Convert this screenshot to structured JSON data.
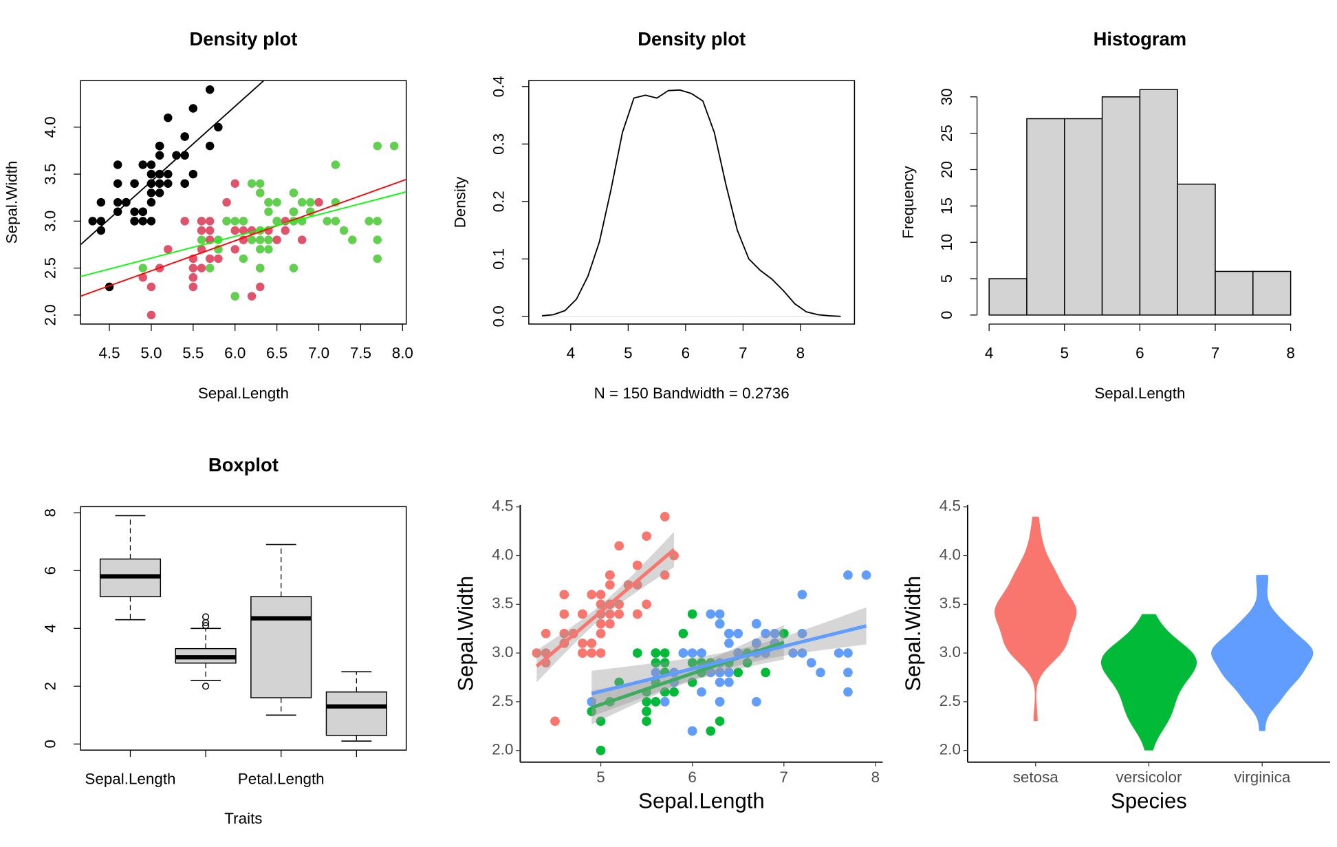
{
  "chart_data": [
    {
      "type": "scatter",
      "title": "Density plot",
      "x_label": "Sepal.Length",
      "y_label": "Sepal.Width",
      "xlim": [
        4.156,
        8.044
      ],
      "ylim": [
        1.904,
        4.496
      ],
      "xticks": [
        4.5,
        {
          "value": 5,
          "label": "5.0"
        },
        5.5,
        {
          "value": 6,
          "label": "6.0"
        },
        6.5,
        {
          "value": 7,
          "label": "7.0"
        },
        7.5,
        {
          "value": 8,
          "label": "8.0"
        }
      ],
      "yticks": [
        {
          "value": 2,
          "label": "2.0"
        },
        2.5,
        {
          "value": 3,
          "label": "3.0"
        },
        3.5,
        {
          "value": 4,
          "label": "4.0"
        }
      ],
      "trend_lines": true,
      "series": [
        {
          "color": "#000000",
          "line_color": "#000000",
          "x": [
            5.1,
            4.9,
            4.7,
            4.6,
            5.0,
            5.4,
            4.6,
            5.0,
            4.4,
            4.9,
            5.4,
            4.8,
            4.8,
            4.3,
            5.8,
            5.7,
            5.4,
            5.1,
            5.7,
            5.1,
            5.4,
            5.1,
            4.6,
            5.1,
            4.8,
            5.0,
            5.0,
            5.2,
            5.2,
            4.7,
            4.8,
            5.4,
            5.2,
            5.5,
            4.9,
            5.0,
            5.5,
            4.9,
            4.4,
            5.1,
            5.0,
            4.5,
            4.4,
            5.0,
            5.1,
            4.8,
            5.1,
            4.6,
            5.3,
            5.0
          ],
          "y": [
            3.5,
            3.0,
            3.2,
            3.1,
            3.6,
            3.9,
            3.4,
            3.4,
            2.9,
            3.1,
            3.7,
            3.4,
            3.0,
            3.0,
            4.0,
            4.4,
            3.9,
            3.5,
            3.8,
            3.8,
            3.4,
            3.7,
            3.6,
            3.3,
            3.4,
            3.0,
            3.4,
            3.5,
            3.4,
            3.2,
            3.1,
            3.4,
            4.1,
            4.2,
            3.1,
            3.2,
            3.5,
            3.6,
            3.0,
            3.4,
            3.5,
            2.3,
            3.2,
            3.5,
            3.8,
            3.0,
            3.8,
            3.2,
            3.7,
            3.3
          ]
        },
        {
          "color": "#DF536B",
          "line_color": "#FF0000",
          "x": [
            7.0,
            6.4,
            6.9,
            5.5,
            6.5,
            5.7,
            6.3,
            4.9,
            6.6,
            5.2,
            5.0,
            5.9,
            6.0,
            6.1,
            5.6,
            6.7,
            5.6,
            5.8,
            6.2,
            5.6,
            5.9,
            6.1,
            6.3,
            6.1,
            6.4,
            6.6,
            6.8,
            6.7,
            6.0,
            5.7,
            5.5,
            5.5,
            5.8,
            6.0,
            5.4,
            6.0,
            6.7,
            6.3,
            5.6,
            5.5,
            5.5,
            6.1,
            5.8,
            5.0,
            5.6,
            5.7,
            5.7,
            6.2,
            5.1,
            5.7
          ],
          "y": [
            3.2,
            3.2,
            3.1,
            2.3,
            2.8,
            2.8,
            3.3,
            2.4,
            2.9,
            2.7,
            2.0,
            3.0,
            2.2,
            2.9,
            2.9,
            3.1,
            3.0,
            2.7,
            2.2,
            2.5,
            3.2,
            2.8,
            2.5,
            2.8,
            2.9,
            3.0,
            2.8,
            3.0,
            2.9,
            2.6,
            2.4,
            2.4,
            2.7,
            2.7,
            3.0,
            3.4,
            3.1,
            2.3,
            3.0,
            2.5,
            2.6,
            3.0,
            2.6,
            2.3,
            2.7,
            3.0,
            2.9,
            2.9,
            2.5,
            2.8
          ]
        },
        {
          "color": "#61D04F",
          "line_color": "#00FF00",
          "x": [
            6.3,
            5.8,
            7.1,
            6.3,
            6.5,
            7.6,
            4.9,
            7.3,
            6.7,
            7.2,
            6.5,
            6.4,
            6.8,
            5.7,
            5.8,
            6.4,
            6.5,
            7.7,
            7.7,
            6.0,
            6.9,
            5.6,
            7.7,
            6.3,
            6.7,
            7.2,
            6.2,
            6.1,
            6.4,
            7.2,
            7.4,
            7.9,
            6.4,
            6.3,
            6.1,
            7.7,
            6.3,
            6.4,
            6.0,
            6.9,
            6.7,
            6.9,
            5.8,
            6.8,
            6.7,
            6.7,
            6.3,
            6.5,
            6.2,
            5.9
          ],
          "y": [
            3.3,
            2.7,
            3.0,
            2.9,
            3.0,
            3.0,
            2.5,
            2.9,
            2.5,
            3.6,
            3.2,
            2.7,
            3.0,
            2.5,
            2.8,
            3.2,
            3.0,
            3.8,
            2.6,
            2.2,
            3.2,
            2.8,
            2.8,
            2.7,
            3.3,
            3.2,
            2.8,
            3.0,
            2.8,
            3.0,
            2.8,
            3.8,
            2.8,
            2.8,
            2.6,
            3.0,
            3.4,
            3.1,
            3.0,
            3.1,
            3.1,
            3.1,
            2.7,
            3.2,
            3.3,
            3.0,
            2.5,
            3.0,
            3.4,
            3.0
          ]
        }
      ]
    },
    {
      "type": "density",
      "title": "Density plot",
      "x_label": "N = 150   Bandwidth = 0.2736",
      "y_label": "Density",
      "xlim": [
        3.27,
        8.94
      ],
      "ylim": [
        -0.0134,
        0.4104
      ],
      "xticks": [
        4,
        5,
        6,
        7,
        8
      ],
      "yticks": [
        {
          "value": 0,
          "label": "0.0"
        },
        0.1,
        0.2,
        0.3,
        0.4
      ],
      "color": "#000000",
      "x": [
        3.5,
        3.7,
        3.9,
        4.1,
        4.3,
        4.5,
        4.7,
        4.9,
        5.1,
        5.3,
        5.5,
        5.7,
        5.9,
        6.1,
        6.3,
        6.5,
        6.7,
        6.9,
        7.1,
        7.3,
        7.5,
        7.7,
        7.9,
        8.1,
        8.3,
        8.5,
        8.7
      ],
      "values": [
        0.001,
        0.003,
        0.01,
        0.03,
        0.07,
        0.13,
        0.22,
        0.32,
        0.38,
        0.385,
        0.38,
        0.393,
        0.394,
        0.388,
        0.375,
        0.32,
        0.23,
        0.15,
        0.1,
        0.08,
        0.065,
        0.045,
        0.022,
        0.008,
        0.003,
        0.001,
        0
      ]
    },
    {
      "type": "histogram",
      "title": "Histogram",
      "x_label": "Sepal.Length",
      "y_label": "Frequency",
      "xlim": [
        3.84,
        8.16
      ],
      "ylim": [
        -1.24,
        32.24
      ],
      "xticks": [
        4,
        5,
        6,
        7,
        8
      ],
      "yticks": [
        0,
        5,
        10,
        15,
        20,
        25,
        30
      ],
      "color": "#D3D3D3",
      "bins": [
        4,
        4.5,
        5,
        5.5,
        6,
        6.5,
        7,
        7.5,
        8
      ],
      "values": [
        5,
        27,
        27,
        30,
        31,
        18,
        6,
        6
      ]
    },
    {
      "type": "box",
      "title": "Boxplot",
      "x_label": "Traits",
      "ylim": [
        -0.212,
        8.212
      ],
      "yticks": [
        0,
        2,
        4,
        6,
        8
      ],
      "color": "#D3D3D3",
      "categories": [
        "Sepal.Length",
        null,
        "Petal.Length",
        null
      ],
      "boxes": [
        {
          "min": 4.3,
          "q1": 5.1,
          "median": 5.8,
          "q3": 6.4,
          "max": 7.9,
          "outliers": []
        },
        {
          "min": 2.2,
          "q1": 2.8,
          "median": 3.0,
          "q3": 3.3,
          "max": 4.0,
          "outliers": [
            4.4,
            4.1,
            4.2,
            2.0
          ]
        },
        {
          "min": 1.0,
          "q1": 1.6,
          "median": 4.35,
          "q3": 5.1,
          "max": 6.9,
          "outliers": []
        },
        {
          "min": 0.1,
          "q1": 0.3,
          "median": 1.3,
          "q3": 1.8,
          "max": 2.5,
          "outliers": []
        }
      ]
    },
    {
      "type": "scatter",
      "theme": "ggplot2",
      "x_label": "Sepal.Length",
      "y_label": "Sepal.Width",
      "xlim": [
        4.12,
        8.08
      ],
      "ylim": [
        1.88,
        4.52
      ],
      "xticks": [
        5,
        6,
        7,
        8
      ],
      "yticks": [
        {
          "value": 2,
          "label": "2.0"
        },
        2.5,
        {
          "value": 3,
          "label": "3.0"
        },
        3.5,
        {
          "value": 4,
          "label": "4.0"
        },
        4.5
      ],
      "trend_lines": true,
      "confidence_band": true,
      "series": [
        {
          "color": "#F8766D",
          "x": [
            5.1,
            4.9,
            4.7,
            4.6,
            5.0,
            5.4,
            4.6,
            5.0,
            4.4,
            4.9,
            5.4,
            4.8,
            4.8,
            4.3,
            5.8,
            5.7,
            5.4,
            5.1,
            5.7,
            5.1,
            5.4,
            5.1,
            4.6,
            5.1,
            4.8,
            5.0,
            5.0,
            5.2,
            5.2,
            4.7,
            4.8,
            5.4,
            5.2,
            5.5,
            4.9,
            5.0,
            5.5,
            4.9,
            4.4,
            5.1,
            5.0,
            4.5,
            4.4,
            5.0,
            5.1,
            4.8,
            5.1,
            4.6,
            5.3,
            5.0
          ],
          "y": [
            3.5,
            3.0,
            3.2,
            3.1,
            3.6,
            3.9,
            3.4,
            3.4,
            2.9,
            3.1,
            3.7,
            3.4,
            3.0,
            3.0,
            4.0,
            4.4,
            3.9,
            3.5,
            3.8,
            3.8,
            3.4,
            3.7,
            3.6,
            3.3,
            3.4,
            3.0,
            3.4,
            3.5,
            3.4,
            3.2,
            3.1,
            3.4,
            4.1,
            4.2,
            3.1,
            3.2,
            3.5,
            3.6,
            3.0,
            3.4,
            3.5,
            2.3,
            3.2,
            3.5,
            3.8,
            3.0,
            3.8,
            3.2,
            3.7,
            3.3
          ]
        },
        {
          "color": "#00BA38",
          "x": [
            7.0,
            6.4,
            6.9,
            5.5,
            6.5,
            5.7,
            6.3,
            4.9,
            6.6,
            5.2,
            5.0,
            5.9,
            6.0,
            6.1,
            5.6,
            6.7,
            5.6,
            5.8,
            6.2,
            5.6,
            5.9,
            6.1,
            6.3,
            6.1,
            6.4,
            6.6,
            6.8,
            6.7,
            6.0,
            5.7,
            5.5,
            5.5,
            5.8,
            6.0,
            5.4,
            6.0,
            6.7,
            6.3,
            5.6,
            5.5,
            5.5,
            6.1,
            5.8,
            5.0,
            5.6,
            5.7,
            5.7,
            6.2,
            5.1,
            5.7
          ],
          "y": [
            3.2,
            3.2,
            3.1,
            2.3,
            2.8,
            2.8,
            3.3,
            2.4,
            2.9,
            2.7,
            2.0,
            3.0,
            2.2,
            2.9,
            2.9,
            3.1,
            3.0,
            2.7,
            2.2,
            2.5,
            3.2,
            2.8,
            2.5,
            2.8,
            2.9,
            3.0,
            2.8,
            3.0,
            2.9,
            2.6,
            2.4,
            2.4,
            2.7,
            2.7,
            3.0,
            3.4,
            3.1,
            2.3,
            3.0,
            2.5,
            2.6,
            3.0,
            2.6,
            2.3,
            2.7,
            3.0,
            2.9,
            2.9,
            2.5,
            2.8
          ]
        },
        {
          "color": "#619CFF",
          "x": [
            6.3,
            5.8,
            7.1,
            6.3,
            6.5,
            7.6,
            4.9,
            7.3,
            6.7,
            7.2,
            6.5,
            6.4,
            6.8,
            5.7,
            5.8,
            6.4,
            6.5,
            7.7,
            7.7,
            6.0,
            6.9,
            5.6,
            7.7,
            6.3,
            6.7,
            7.2,
            6.2,
            6.1,
            6.4,
            7.2,
            7.4,
            7.9,
            6.4,
            6.3,
            6.1,
            7.7,
            6.3,
            6.4,
            6.0,
            6.9,
            6.7,
            6.9,
            5.8,
            6.8,
            6.7,
            6.7,
            6.3,
            6.5,
            6.2,
            5.9
          ],
          "y": [
            3.3,
            2.7,
            3.0,
            2.9,
            3.0,
            3.0,
            2.5,
            2.9,
            2.5,
            3.6,
            3.2,
            2.7,
            3.0,
            2.5,
            2.8,
            3.2,
            3.0,
            3.8,
            2.6,
            2.2,
            3.2,
            2.8,
            2.8,
            2.7,
            3.3,
            3.2,
            2.8,
            3.0,
            2.8,
            3.0,
            2.8,
            3.8,
            2.8,
            2.8,
            2.6,
            3.0,
            3.4,
            3.1,
            3.0,
            3.1,
            3.1,
            3.1,
            2.7,
            3.2,
            3.3,
            3.0,
            2.5,
            3.0,
            3.4,
            3.0
          ]
        }
      ]
    },
    {
      "type": "violin",
      "theme": "ggplot2",
      "x_label": "Species",
      "y_label": "Sepal.Width",
      "ylim": [
        1.88,
        4.52
      ],
      "yticks": [
        {
          "value": 2,
          "label": "2.0"
        },
        2.5,
        {
          "value": 3,
          "label": "3.0"
        },
        3.5,
        {
          "value": 4,
          "label": "4.0"
        },
        4.5
      ],
      "series": [
        {
          "name": "setosa",
          "color": "#F8766D",
          "values": [
            3.5,
            3.0,
            3.2,
            3.1,
            3.6,
            3.9,
            3.4,
            3.4,
            2.9,
            3.1,
            3.7,
            3.4,
            3.0,
            3.0,
            4.0,
            4.4,
            3.9,
            3.5,
            3.8,
            3.8,
            3.4,
            3.7,
            3.6,
            3.3,
            3.4,
            3.0,
            3.4,
            3.5,
            3.4,
            3.2,
            3.1,
            3.4,
            4.1,
            4.2,
            3.1,
            3.2,
            3.5,
            3.6,
            3.0,
            3.4,
            3.5,
            2.3,
            3.2,
            3.5,
            3.8,
            3.0,
            3.8,
            3.2,
            3.7,
            3.3
          ]
        },
        {
          "name": "versicolor",
          "color": "#00BA38",
          "values": [
            3.2,
            3.2,
            3.1,
            2.3,
            2.8,
            2.8,
            3.3,
            2.4,
            2.9,
            2.7,
            2.0,
            3.0,
            2.2,
            2.9,
            2.9,
            3.1,
            3.0,
            2.7,
            2.2,
            2.5,
            3.2,
            2.8,
            2.5,
            2.8,
            2.9,
            3.0,
            2.8,
            3.0,
            2.9,
            2.6,
            2.4,
            2.4,
            2.7,
            2.7,
            3.0,
            3.4,
            3.1,
            2.3,
            3.0,
            2.5,
            2.6,
            3.0,
            2.6,
            2.3,
            2.7,
            3.0,
            2.9,
            2.9,
            2.5,
            2.8
          ]
        },
        {
          "name": "virginica",
          "color": "#619CFF",
          "values": [
            3.3,
            2.7,
            3.0,
            2.9,
            3.0,
            3.0,
            2.5,
            2.9,
            2.5,
            3.6,
            3.2,
            2.7,
            3.0,
            2.5,
            2.8,
            3.2,
            3.0,
            3.8,
            2.6,
            2.2,
            3.2,
            2.8,
            2.8,
            2.7,
            3.3,
            3.2,
            2.8,
            3.0,
            2.8,
            3.0,
            2.8,
            3.8,
            2.8,
            2.8,
            2.6,
            3.0,
            3.4,
            3.1,
            3.0,
            3.1,
            3.1,
            3.1,
            2.7,
            3.2,
            3.3,
            3.0,
            2.5,
            3.0,
            3.4,
            3.0
          ]
        }
      ]
    }
  ]
}
